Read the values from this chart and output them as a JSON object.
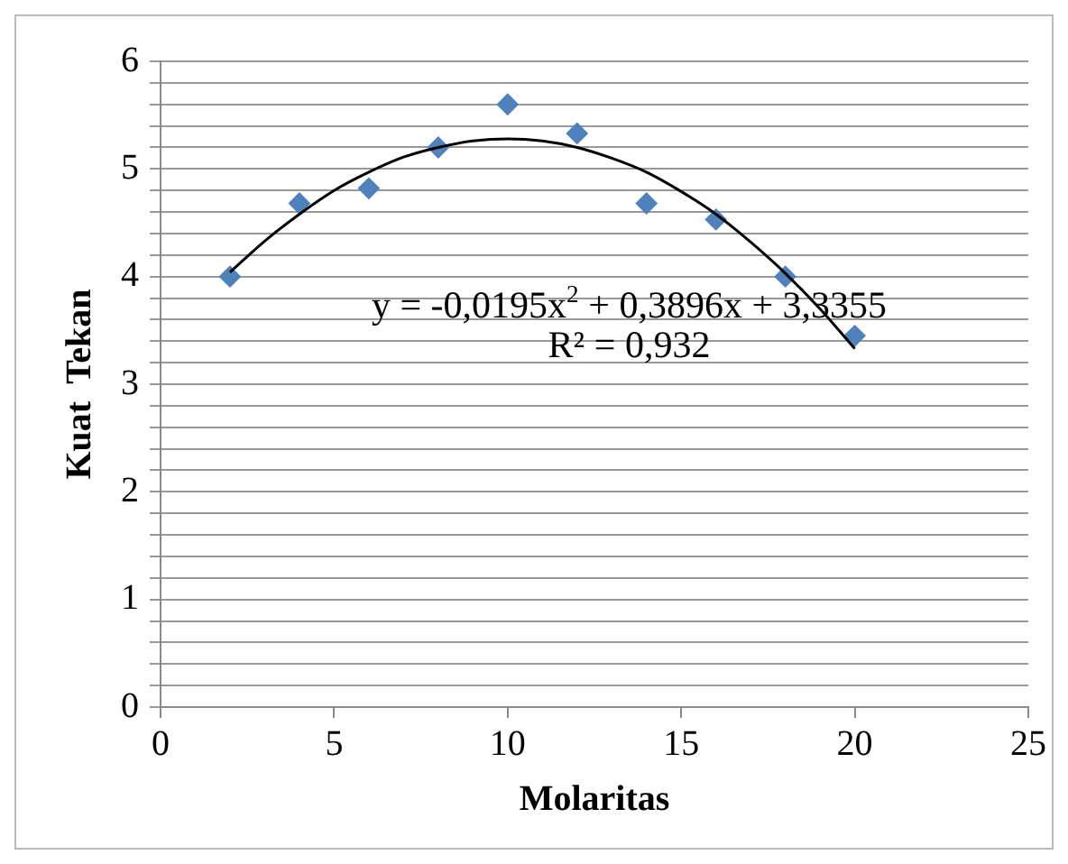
{
  "chart_data": {
    "type": "scatter",
    "xlabel": "Molaritas",
    "ylabel": "Kuat  Tekan",
    "x": [
      2,
      4,
      6,
      8,
      10,
      12,
      14,
      16,
      18,
      20
    ],
    "series": [
      {
        "type": "scatter",
        "color": "#4f81bd",
        "marker": "diamond",
        "values": [
          4.0,
          4.68,
          4.82,
          5.2,
          5.6,
          5.33,
          4.68,
          4.53,
          4.0,
          3.45
        ]
      },
      {
        "type": "line",
        "color": "#000000",
        "marker": "none",
        "line_style": "solid",
        "x": [
          2,
          3,
          4,
          5,
          6,
          7,
          8,
          9,
          10,
          11,
          12,
          13,
          14,
          15,
          16,
          17,
          18,
          19,
          20
        ],
        "values": [
          4.04,
          4.33,
          4.58,
          4.8,
          4.97,
          5.11,
          5.2,
          5.26,
          5.28,
          5.26,
          5.2,
          5.1,
          4.97,
          4.79,
          4.58,
          4.32,
          4.03,
          3.7,
          3.33
        ]
      }
    ],
    "xlim": [
      0,
      25
    ],
    "xticks": [
      0,
      5,
      10,
      15,
      20,
      25
    ],
    "ylim": [
      0,
      6
    ],
    "yticks": [
      0,
      {
        "value": 0.2,
        "label": null
      },
      {
        "value": 0.4,
        "label": null
      },
      {
        "value": 0.6,
        "label": null
      },
      {
        "value": 0.8,
        "label": null
      },
      1,
      {
        "value": 1.2,
        "label": null
      },
      {
        "value": 1.4,
        "label": null
      },
      {
        "value": 1.6,
        "label": null
      },
      {
        "value": 1.8,
        "label": null
      },
      2,
      {
        "value": 2.2,
        "label": null
      },
      {
        "value": 2.4,
        "label": null
      },
      {
        "value": 2.6,
        "label": null
      },
      {
        "value": 2.8,
        "label": null
      },
      3,
      {
        "value": 3.2,
        "label": null
      },
      {
        "value": 3.4,
        "label": null
      },
      {
        "value": 3.6,
        "label": null
      },
      {
        "value": 3.8,
        "label": null
      },
      4,
      {
        "value": 4.2,
        "label": null
      },
      {
        "value": 4.4,
        "label": null
      },
      {
        "value": 4.6,
        "label": null
      },
      {
        "value": 4.8,
        "label": null
      },
      5,
      {
        "value": 5.2,
        "label": null
      },
      {
        "value": 5.4,
        "label": null
      },
      {
        "value": 5.6,
        "label": null
      },
      {
        "value": 5.8,
        "label": null
      },
      6
    ],
    "grid": "y",
    "legend": false,
    "annotations": [
      "y = -0,0195x$^{2}$ + 0,3896x + 3,3355",
      "R² = 0,932"
    ]
  }
}
